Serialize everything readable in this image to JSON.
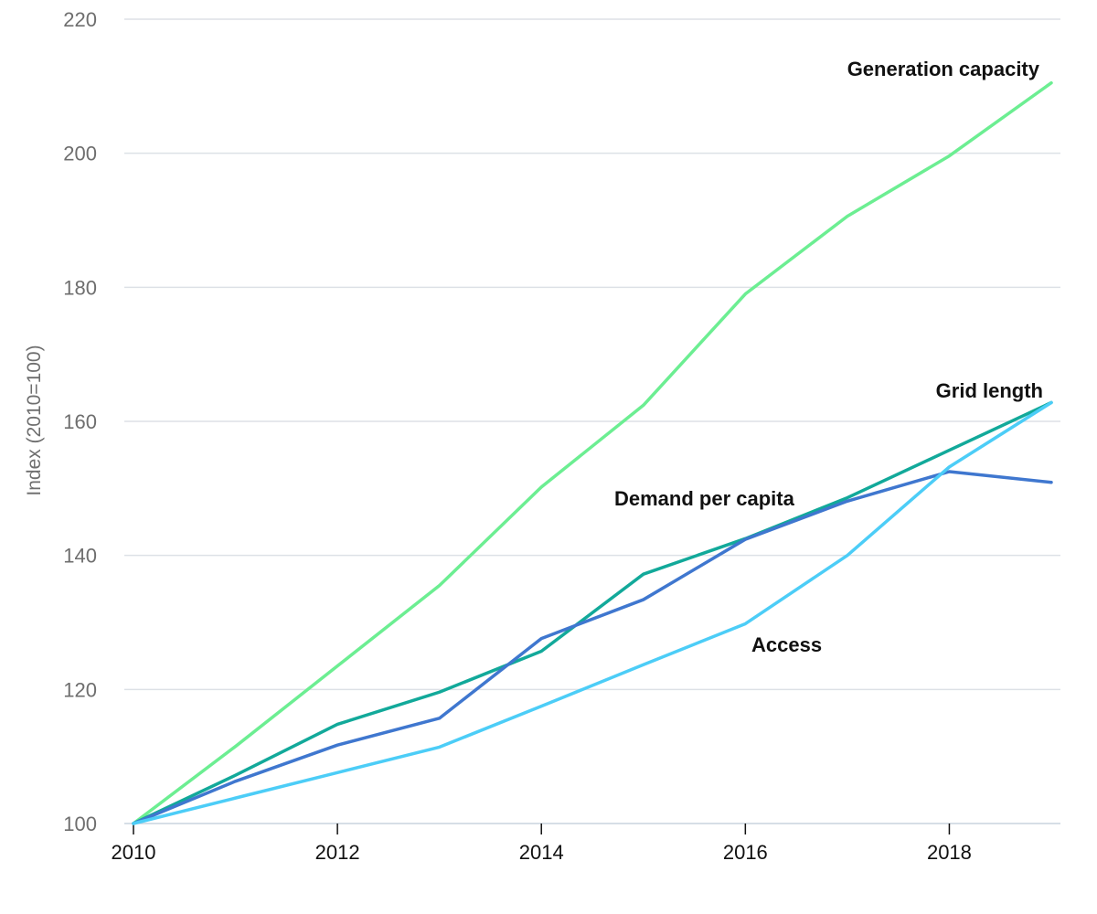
{
  "chart_data": {
    "type": "line",
    "title": "",
    "xlabel": "",
    "ylabel": "Index (2010=100)",
    "xlim": [
      2010,
      2019
    ],
    "ylim": [
      100,
      220
    ],
    "x": [
      2010,
      2011,
      2012,
      2013,
      2014,
      2015,
      2016,
      2017,
      2018,
      2019
    ],
    "xticks": [
      "2010",
      "2012",
      "2014",
      "2016",
      "2018"
    ],
    "yticks": [
      "100",
      "120",
      "140",
      "160",
      "180",
      "200",
      "220"
    ],
    "grid": true,
    "legend": "none",
    "series": [
      {
        "name": "Generation capacity",
        "color": "#6cee92",
        "values": [
          100,
          111.5,
          123.5,
          135.5,
          150.2,
          162.4,
          179,
          190.6,
          199.6,
          210.5
        ]
      },
      {
        "name": "Grid length",
        "color": "#12a99a",
        "values": [
          100,
          107.2,
          114.8,
          119.6,
          125.7,
          137.2,
          142.5,
          148.6,
          155.7,
          162.8
        ]
      },
      {
        "name": "Demand per capita",
        "color": "#3f77cf",
        "values": [
          100,
          106.3,
          111.7,
          115.7,
          127.6,
          133.4,
          142.4,
          148.1,
          152.5,
          150.9
        ]
      },
      {
        "name": "Access",
        "color": "#4ccdf7",
        "values": [
          100,
          103.8,
          107.6,
          111.4,
          117.5,
          123.7,
          129.8,
          140,
          153.2,
          162.8
        ]
      }
    ]
  }
}
